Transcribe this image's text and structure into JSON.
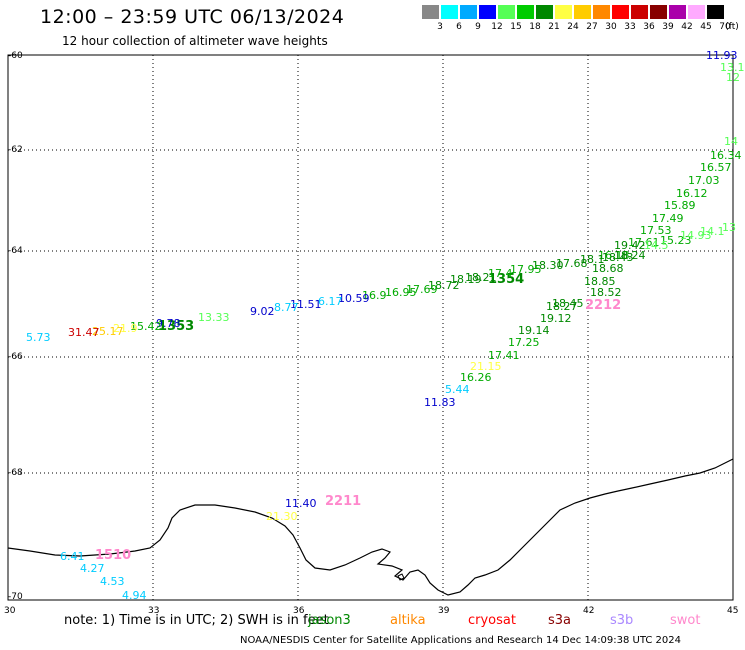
{
  "header": {
    "title": "12:00 – 23:59 UTC 06/13/2024",
    "subtitle": "12 hour collection of altimeter wave heights"
  },
  "legend": {
    "unit": "(ft)",
    "bins": [
      {
        "label": "3",
        "color": "#888888"
      },
      {
        "label": "6",
        "color": "#00ffff"
      },
      {
        "label": "9",
        "color": "#00aaff"
      },
      {
        "label": "12",
        "color": "#0000ff"
      },
      {
        "label": "15",
        "color": "#55ff55"
      },
      {
        "label": "18",
        "color": "#00cc00"
      },
      {
        "label": "21",
        "color": "#008800"
      },
      {
        "label": "24",
        "color": "#ffff44"
      },
      {
        "label": "27",
        "color": "#ffcc00"
      },
      {
        "label": "30",
        "color": "#ff8800"
      },
      {
        "label": "33",
        "color": "#ff0000"
      },
      {
        "label": "36",
        "color": "#cc0000"
      },
      {
        "label": "39",
        "color": "#880000"
      },
      {
        "label": "42",
        "color": "#aa00aa"
      },
      {
        "label": "45",
        "color": "#ffaaff"
      },
      {
        "label": "70",
        "color": "#000000"
      }
    ]
  },
  "axes": {
    "lat_labels": [
      "-60",
      "-62",
      "-64",
      "-66",
      "-68",
      "-70"
    ],
    "lon_labels": [
      "30",
      "33",
      "36",
      "39",
      "42",
      "45"
    ]
  },
  "passes": [
    "1353",
    "1354",
    "2212",
    "2211",
    "1510"
  ],
  "observations": [
    {
      "t": "11.93",
      "c": "#0000cc"
    },
    {
      "t": "13.1",
      "c": "#55ff55"
    },
    {
      "t": "12",
      "c": "#55ff55"
    },
    {
      "t": "14",
      "c": "#55ff55"
    },
    {
      "t": "16.34",
      "c": "#00aa00"
    },
    {
      "t": "16.57",
      "c": "#00aa00"
    },
    {
      "t": "17.03",
      "c": "#00aa00"
    },
    {
      "t": "16.12",
      "c": "#00aa00"
    },
    {
      "t": "15.89",
      "c": "#00aa00"
    },
    {
      "t": "17.49",
      "c": "#00aa00"
    },
    {
      "t": "17.53",
      "c": "#00aa00"
    },
    {
      "t": "17.61",
      "c": "#00aa00"
    },
    {
      "t": "15.23",
      "c": "#00aa00"
    },
    {
      "t": "14.93",
      "c": "#55ff55"
    },
    {
      "t": "14.1",
      "c": "#55ff55"
    },
    {
      "t": "13",
      "c": "#55ff55"
    },
    {
      "t": "19.42",
      "c": "#008800"
    },
    {
      "t": "14.5",
      "c": "#55ff55"
    },
    {
      "t": "16.18",
      "c": "#00aa00"
    },
    {
      "t": "18.24",
      "c": "#008800"
    },
    {
      "t": "18.43",
      "c": "#008800"
    },
    {
      "t": "18.1",
      "c": "#008800"
    },
    {
      "t": "17.68",
      "c": "#008800"
    },
    {
      "t": "18.68",
      "c": "#008800"
    },
    {
      "t": "18.30",
      "c": "#008800"
    },
    {
      "t": "17.95",
      "c": "#00aa00"
    },
    {
      "t": "17.4",
      "c": "#00aa00"
    },
    {
      "t": "18.85",
      "c": "#008800"
    },
    {
      "t": "18.52",
      "c": "#008800"
    },
    {
      "t": "18.45",
      "c": "#008800"
    },
    {
      "t": "18.27",
      "c": "#008800"
    },
    {
      "t": "19.12",
      "c": "#008800"
    },
    {
      "t": "19.14",
      "c": "#008800"
    },
    {
      "t": "17.25",
      "c": "#00aa00"
    },
    {
      "t": "17.41",
      "c": "#00aa00"
    },
    {
      "t": "21.15",
      "c": "#ffff44"
    },
    {
      "t": "16.26",
      "c": "#00aa00"
    },
    {
      "t": "5.44",
      "c": "#00ccff"
    },
    {
      "t": "11.83",
      "c": "#0000cc"
    },
    {
      "t": "18.21",
      "c": "#008800"
    },
    {
      "t": "18.19",
      "c": "#008800"
    },
    {
      "t": "18.72",
      "c": "#008800"
    },
    {
      "t": "17.69",
      "c": "#00aa00"
    },
    {
      "t": "16.95",
      "c": "#00aa00"
    },
    {
      "t": "16.9",
      "c": "#00aa00"
    },
    {
      "t": "10.59",
      "c": "#0000cc"
    },
    {
      "t": "6.17",
      "c": "#00ccff"
    },
    {
      "t": "11.51",
      "c": "#0000cc"
    },
    {
      "t": "8.77",
      "c": "#00ccff"
    },
    {
      "t": "9.02",
      "c": "#0000cc"
    },
    {
      "t": "13.33",
      "c": "#55ff55"
    },
    {
      "t": "9.78",
      "c": "#0000cc"
    },
    {
      "t": "15.42",
      "c": "#00aa00"
    },
    {
      "t": "21.9",
      "c": "#ffff44"
    },
    {
      "t": "25.17",
      "c": "#ffcc00"
    },
    {
      "t": "31.47",
      "c": "#cc0000"
    },
    {
      "t": "5.73",
      "c": "#00ccff"
    },
    {
      "t": "11.40",
      "c": "#0000cc"
    },
    {
      "t": "21.30",
      "c": "#ffff44"
    },
    {
      "t": "6.41",
      "c": "#00ccff"
    },
    {
      "t": "4.27",
      "c": "#00ccff"
    },
    {
      "t": "4.53",
      "c": "#00ccff"
    },
    {
      "t": "4.94",
      "c": "#00ccff"
    }
  ],
  "footer": {
    "note": "note:  1) Time is in UTC;  2) SWH is in feet",
    "satellites": [
      {
        "name": "jason3",
        "color": "#008800"
      },
      {
        "name": "altika",
        "color": "#ff8800"
      },
      {
        "name": "cryosat",
        "color": "#ff0000"
      },
      {
        "name": "s3a",
        "color": "#880000"
      },
      {
        "name": "s3b",
        "color": "#aa88ff"
      },
      {
        "name": "swot",
        "color": "#ff88cc"
      }
    ],
    "credit": "NOAA/NESDIS Center for Satellite Applications and Research     14 Dec 14:09:38 UTC 2024"
  }
}
